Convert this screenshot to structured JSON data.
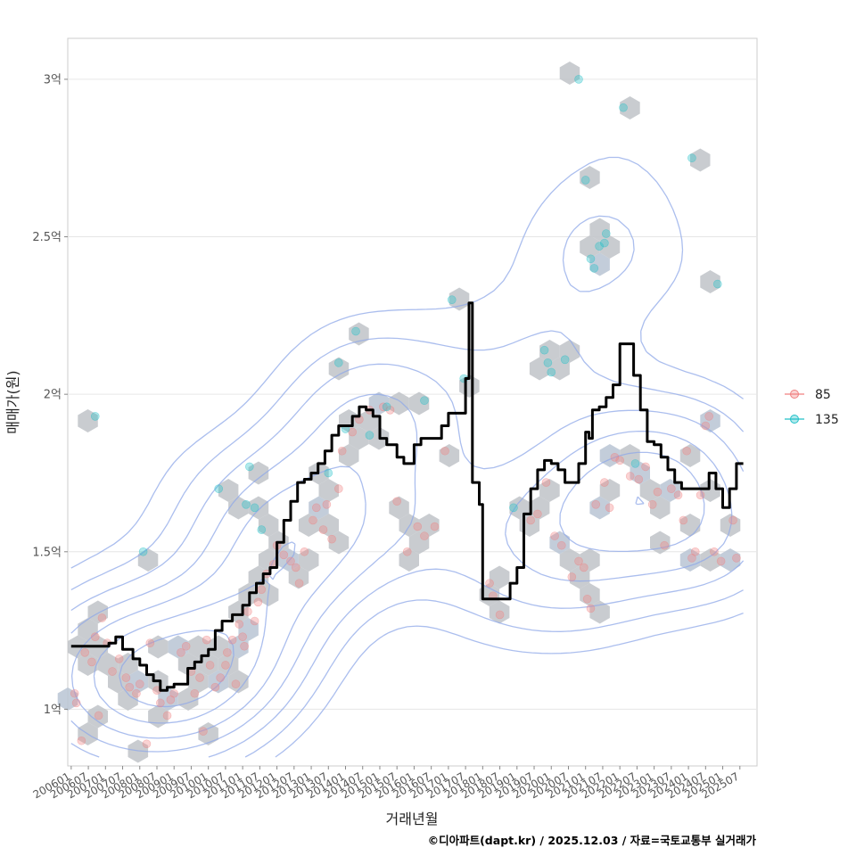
{
  "chart_data": {
    "type": "scatter",
    "title": "",
    "xlabel": "거래년월",
    "ylabel": "매매가(원)",
    "caption": "©디아파트(dapt.kr) / 2025.12.03 / 자료=국토교통부 실거래가",
    "y_unit": "억",
    "ylim": [
      0.82,
      3.13
    ],
    "xlim": [
      2005.9,
      2026.0
    ],
    "grid": true,
    "legend_position": "right",
    "y_ticks": [
      {
        "value": 1.0,
        "label": "1억"
      },
      {
        "value": 1.5,
        "label": "1.5억"
      },
      {
        "value": 2.0,
        "label": "2억"
      },
      {
        "value": 2.5,
        "label": "2.5억"
      },
      {
        "value": 3.0,
        "label": "3억"
      }
    ],
    "x_ticks": [
      {
        "value": 2006.0,
        "label": "200601"
      },
      {
        "value": 2006.5,
        "label": "200607"
      },
      {
        "value": 2007.0,
        "label": "200701"
      },
      {
        "value": 2007.5,
        "label": "200707"
      },
      {
        "value": 2008.0,
        "label": "200801"
      },
      {
        "value": 2008.5,
        "label": "200807"
      },
      {
        "value": 2009.0,
        "label": "200901"
      },
      {
        "value": 2009.5,
        "label": "200907"
      },
      {
        "value": 2010.0,
        "label": "201001"
      },
      {
        "value": 2010.5,
        "label": "201007"
      },
      {
        "value": 2011.0,
        "label": "201101"
      },
      {
        "value": 2011.5,
        "label": "201107"
      },
      {
        "value": 2012.0,
        "label": "201201"
      },
      {
        "value": 2012.5,
        "label": "201207"
      },
      {
        "value": 2013.0,
        "label": "201301"
      },
      {
        "value": 2013.5,
        "label": "201307"
      },
      {
        "value": 2014.0,
        "label": "201401"
      },
      {
        "value": 2014.5,
        "label": "201407"
      },
      {
        "value": 2015.0,
        "label": "201501"
      },
      {
        "value": 2015.5,
        "label": "201507"
      },
      {
        "value": 2016.0,
        "label": "201601"
      },
      {
        "value": 2016.5,
        "label": "201607"
      },
      {
        "value": 2017.0,
        "label": "201701"
      },
      {
        "value": 2017.5,
        "label": "201707"
      },
      {
        "value": 2018.0,
        "label": "201801"
      },
      {
        "value": 2018.5,
        "label": "201807"
      },
      {
        "value": 2019.0,
        "label": "201901"
      },
      {
        "value": 2019.5,
        "label": "201907"
      },
      {
        "value": 2020.0,
        "label": "202001"
      },
      {
        "value": 2020.5,
        "label": "202007"
      },
      {
        "value": 2021.0,
        "label": "202101"
      },
      {
        "value": 2021.5,
        "label": "202107"
      },
      {
        "value": 2022.0,
        "label": "202201"
      },
      {
        "value": 2022.5,
        "label": "202207"
      },
      {
        "value": 2023.0,
        "label": "202301"
      },
      {
        "value": 2023.5,
        "label": "202307"
      },
      {
        "value": 2024.0,
        "label": "202401"
      },
      {
        "value": 2024.5,
        "label": "202407"
      },
      {
        "value": 2025.0,
        "label": "202501"
      },
      {
        "value": 2025.5,
        "label": "202507"
      }
    ],
    "legend": [
      {
        "name": "85",
        "color": "#f08080"
      },
      {
        "name": "135",
        "color": "#20c0c8"
      }
    ],
    "series": [
      {
        "name": "85",
        "color": "#f08080",
        "points": [
          [
            2006.1,
            1.05
          ],
          [
            2006.15,
            1.02
          ],
          [
            2006.3,
            0.9
          ],
          [
            2006.4,
            1.18
          ],
          [
            2006.6,
            1.15
          ],
          [
            2006.7,
            1.23
          ],
          [
            2006.8,
            0.98
          ],
          [
            2006.9,
            1.29
          ],
          [
            2007.05,
            1.21
          ],
          [
            2007.2,
            1.12
          ],
          [
            2007.4,
            1.16
          ],
          [
            2007.6,
            1.1
          ],
          [
            2007.7,
            1.07
          ],
          [
            2007.9,
            1.05
          ],
          [
            2008.0,
            1.08
          ],
          [
            2008.2,
            0.89
          ],
          [
            2008.3,
            1.21
          ],
          [
            2008.5,
            1.06
          ],
          [
            2008.6,
            1.02
          ],
          [
            2008.8,
            0.98
          ],
          [
            2008.9,
            1.03
          ],
          [
            2009.0,
            1.05
          ],
          [
            2009.2,
            1.18
          ],
          [
            2009.35,
            1.2
          ],
          [
            2009.5,
            1.12
          ],
          [
            2009.6,
            1.05
          ],
          [
            2009.75,
            1.1
          ],
          [
            2009.85,
            0.93
          ],
          [
            2009.95,
            1.22
          ],
          [
            2010.05,
            1.14
          ],
          [
            2010.2,
            1.07
          ],
          [
            2010.35,
            1.1
          ],
          [
            2010.5,
            1.14
          ],
          [
            2010.55,
            1.18
          ],
          [
            2010.7,
            1.22
          ],
          [
            2010.8,
            1.08
          ],
          [
            2010.9,
            1.27
          ],
          [
            2011.0,
            1.23
          ],
          [
            2011.05,
            1.2
          ],
          [
            2011.15,
            1.31
          ],
          [
            2011.35,
            1.28
          ],
          [
            2011.45,
            1.34
          ],
          [
            2011.55,
            1.38
          ],
          [
            2011.7,
            1.43
          ],
          [
            2011.9,
            1.46
          ],
          [
            2012.0,
            1.52
          ],
          [
            2012.2,
            1.49
          ],
          [
            2012.4,
            1.47
          ],
          [
            2012.55,
            1.45
          ],
          [
            2012.65,
            1.4
          ],
          [
            2012.8,
            1.5
          ],
          [
            2013.05,
            1.6
          ],
          [
            2013.15,
            1.64
          ],
          [
            2013.35,
            1.57
          ],
          [
            2013.45,
            1.65
          ],
          [
            2013.6,
            1.54
          ],
          [
            2013.8,
            1.7
          ],
          [
            2013.9,
            1.82
          ],
          [
            2014.2,
            1.88
          ],
          [
            2014.4,
            1.92
          ],
          [
            2014.7,
            1.95
          ],
          [
            2015.1,
            1.96
          ],
          [
            2015.3,
            1.95
          ],
          [
            2015.5,
            1.66
          ],
          [
            2015.8,
            1.5
          ],
          [
            2016.1,
            1.58
          ],
          [
            2016.3,
            1.55
          ],
          [
            2016.6,
            1.58
          ],
          [
            2016.9,
            1.82
          ],
          [
            2018.2,
            1.4
          ],
          [
            2018.3,
            1.36
          ],
          [
            2018.5,
            1.3
          ],
          [
            2019.4,
            1.6
          ],
          [
            2019.6,
            1.62
          ],
          [
            2019.85,
            1.72
          ],
          [
            2020.1,
            1.55
          ],
          [
            2020.3,
            1.52
          ],
          [
            2020.6,
            1.42
          ],
          [
            2020.8,
            1.47
          ],
          [
            2020.95,
            1.45
          ],
          [
            2021.05,
            1.35
          ],
          [
            2021.15,
            1.32
          ],
          [
            2021.3,
            1.65
          ],
          [
            2021.55,
            1.72
          ],
          [
            2021.7,
            1.64
          ],
          [
            2021.85,
            1.8
          ],
          [
            2022.0,
            1.79
          ],
          [
            2022.3,
            1.74
          ],
          [
            2022.55,
            1.73
          ],
          [
            2022.75,
            1.77
          ],
          [
            2022.95,
            1.65
          ],
          [
            2023.1,
            1.69
          ],
          [
            2023.3,
            1.52
          ],
          [
            2023.5,
            1.7
          ],
          [
            2023.7,
            1.68
          ],
          [
            2023.85,
            1.6
          ],
          [
            2023.95,
            1.82
          ],
          [
            2024.1,
            1.48
          ],
          [
            2024.2,
            1.5
          ],
          [
            2024.35,
            1.68
          ],
          [
            2024.5,
            1.9
          ],
          [
            2024.6,
            1.93
          ],
          [
            2024.75,
            1.5
          ],
          [
            2024.95,
            1.47
          ],
          [
            2025.3,
            1.6
          ],
          [
            2025.4,
            1.48
          ]
        ]
      },
      {
        "name": "135",
        "color": "#20c0c8",
        "points": [
          [
            2006.7,
            1.93
          ],
          [
            2008.1,
            1.5
          ],
          [
            2010.3,
            1.7
          ],
          [
            2011.1,
            1.65
          ],
          [
            2011.35,
            1.64
          ],
          [
            2011.55,
            1.57
          ],
          [
            2011.2,
            1.77
          ],
          [
            2013.5,
            1.75
          ],
          [
            2013.8,
            2.1
          ],
          [
            2014.0,
            1.89
          ],
          [
            2014.3,
            2.2
          ],
          [
            2014.7,
            1.87
          ],
          [
            2015.2,
            1.96
          ],
          [
            2016.3,
            1.98
          ],
          [
            2017.1,
            2.3
          ],
          [
            2017.45,
            2.05
          ],
          [
            2018.9,
            1.64
          ],
          [
            2019.8,
            2.14
          ],
          [
            2019.9,
            2.1
          ],
          [
            2020.0,
            2.07
          ],
          [
            2020.4,
            2.11
          ],
          [
            2020.8,
            3.0
          ],
          [
            2021.0,
            2.68
          ],
          [
            2021.15,
            2.43
          ],
          [
            2021.25,
            2.4
          ],
          [
            2021.4,
            2.47
          ],
          [
            2021.55,
            2.48
          ],
          [
            2021.6,
            2.51
          ],
          [
            2022.1,
            2.91
          ],
          [
            2022.45,
            1.78
          ],
          [
            2024.1,
            2.75
          ],
          [
            2024.85,
            2.35
          ]
        ]
      }
    ],
    "trend_line": {
      "name": "이동평균",
      "color": "#000000",
      "x": [
        2006.0,
        2006.5,
        2006.9,
        2007.1,
        2007.3,
        2007.5,
        2007.8,
        2008.0,
        2008.2,
        2008.4,
        2008.6,
        2008.8,
        2009.0,
        2009.2,
        2009.4,
        2009.6,
        2009.8,
        2010.0,
        2010.2,
        2010.4,
        2010.7,
        2011.0,
        2011.2,
        2011.4,
        2011.6,
        2011.8,
        2012.0,
        2012.2,
        2012.4,
        2012.6,
        2012.8,
        2013.0,
        2013.2,
        2013.4,
        2013.6,
        2013.8,
        2014.0,
        2014.2,
        2014.4,
        2014.6,
        2014.8,
        2015.0,
        2015.2,
        2015.5,
        2015.7,
        2016.0,
        2016.2,
        2016.4,
        2016.6,
        2016.8,
        2017.0,
        2017.2,
        2017.5,
        2017.6,
        2017.7,
        2017.9,
        2018.0,
        2018.2,
        2018.5,
        2018.8,
        2019.0,
        2019.2,
        2019.4,
        2019.6,
        2019.8,
        2020.0,
        2020.2,
        2020.4,
        2020.6,
        2020.8,
        2021.0,
        2021.1,
        2021.2,
        2021.4,
        2021.6,
        2021.8,
        2022.0,
        2022.2,
        2022.4,
        2022.6,
        2022.8,
        2023.0,
        2023.2,
        2023.4,
        2023.6,
        2023.8,
        2024.0,
        2024.2,
        2024.4,
        2024.6,
        2024.8,
        2025.0,
        2025.2,
        2025.4,
        2025.6
      ],
      "y": [
        1.2,
        1.2,
        1.2,
        1.21,
        1.23,
        1.19,
        1.16,
        1.14,
        1.11,
        1.09,
        1.06,
        1.07,
        1.08,
        1.08,
        1.13,
        1.15,
        1.17,
        1.19,
        1.25,
        1.28,
        1.3,
        1.33,
        1.37,
        1.4,
        1.43,
        1.45,
        1.53,
        1.6,
        1.66,
        1.72,
        1.73,
        1.75,
        1.78,
        1.82,
        1.87,
        1.9,
        1.9,
        1.93,
        1.96,
        1.95,
        1.93,
        1.86,
        1.84,
        1.8,
        1.78,
        1.84,
        1.86,
        1.86,
        1.86,
        1.9,
        1.94,
        1.94,
        2.05,
        2.29,
        1.72,
        1.65,
        1.35,
        1.35,
        1.35,
        1.4,
        1.45,
        1.62,
        1.7,
        1.76,
        1.79,
        1.78,
        1.76,
        1.72,
        1.72,
        1.78,
        1.88,
        1.86,
        1.95,
        1.96,
        1.99,
        2.03,
        2.16,
        2.16,
        2.06,
        1.95,
        1.85,
        1.84,
        1.8,
        1.76,
        1.72,
        1.7,
        1.7,
        1.7,
        1.7,
        1.75,
        1.7,
        1.64,
        1.7,
        1.78,
        1.78
      ]
    }
  }
}
